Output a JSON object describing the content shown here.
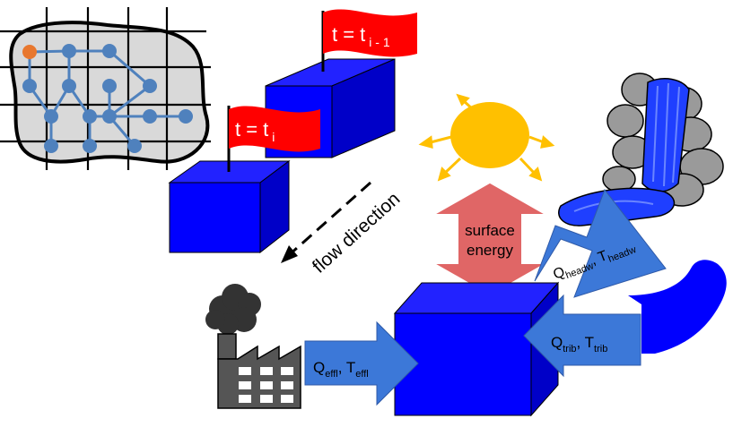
{
  "flags": {
    "upstream": {
      "main": "t = t",
      "sub": "i - 1"
    },
    "current": {
      "main": "t = t",
      "sub": "i"
    }
  },
  "flow_direction": "flow direction",
  "surface_energy": {
    "line1": "surface",
    "line2": "energy"
  },
  "headwater": {
    "q": "Q",
    "q_sub": "headw",
    "sep": ", ",
    "t": "T",
    "t_sub": "headw"
  },
  "tributary": {
    "q": "Q",
    "q_sub": "trib",
    "sep": ", ",
    "t": "T",
    "t_sub": "trib"
  },
  "effluent": {
    "q": "Q",
    "q_sub": "effl",
    "sep": ", ",
    "t": "T",
    "t_sub": "effl"
  },
  "colors": {
    "cube": "#0000ff",
    "flag": "#ff0000",
    "sun": "#ffc000",
    "surface_arrow": "#e06666",
    "input_arrow": "#3c78d8",
    "network_node": "#4f81bd",
    "outlet_node": "#e8772e",
    "factory": "#555555",
    "rock": "#9a9a9a"
  }
}
